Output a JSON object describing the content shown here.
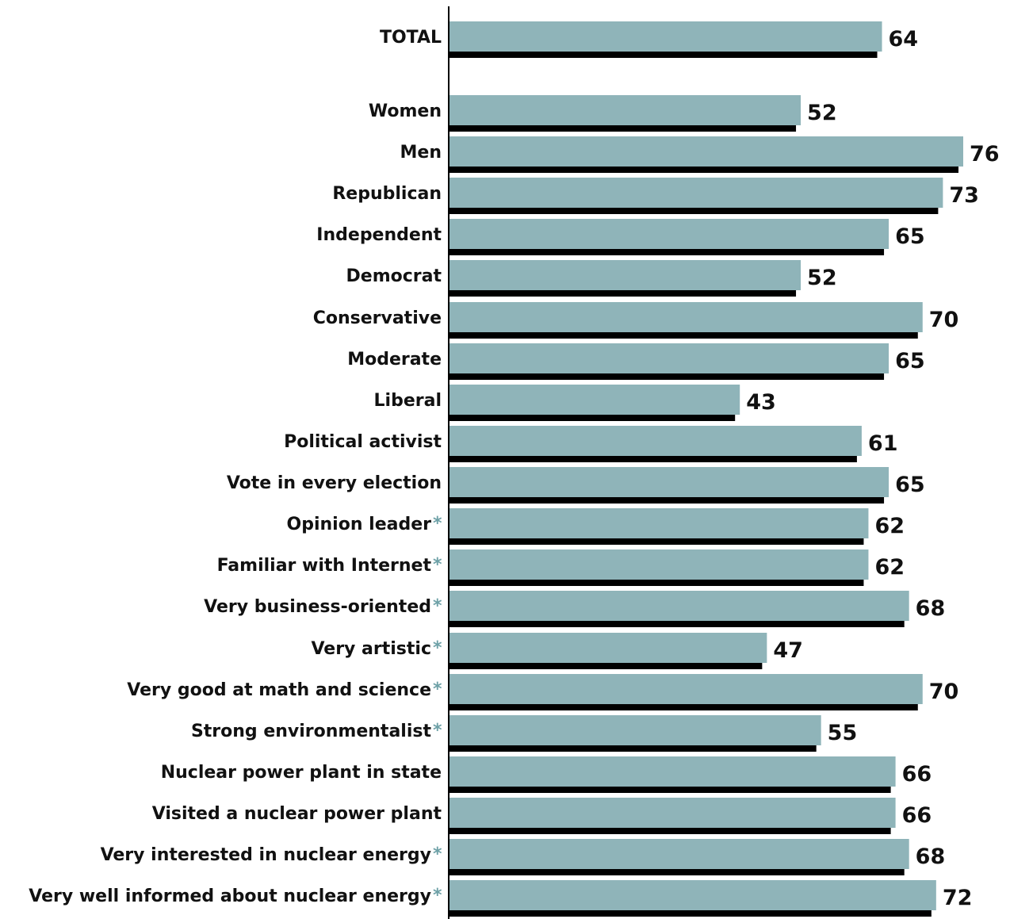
{
  "chart_data": {
    "type": "bar",
    "orientation": "horizontal",
    "xlim": [
      0,
      76
    ],
    "grid": false,
    "legend": "none",
    "colors": {
      "bar": "#8fb4b9",
      "shadow": "#000000",
      "asterisk": "#6ea1a7",
      "axis": "#000000"
    },
    "categories": [
      {
        "label": "TOTAL",
        "value": 64,
        "value_label": "64",
        "asterisk": false
      },
      {
        "label": "Women",
        "value": 52,
        "value_label": "52",
        "asterisk": false
      },
      {
        "label": "Men",
        "value": 76,
        "value_label": "76",
        "asterisk": false
      },
      {
        "label": "Republican",
        "value": 73,
        "value_label": "73",
        "asterisk": false
      },
      {
        "label": "Independent",
        "value": 65,
        "value_label": "65",
        "asterisk": false
      },
      {
        "label": "Democrat",
        "value": 52,
        "value_label": "52",
        "asterisk": false
      },
      {
        "label": "Conservative",
        "value": 70,
        "value_label": "70",
        "asterisk": false
      },
      {
        "label": "Moderate",
        "value": 65,
        "value_label": "65",
        "asterisk": false
      },
      {
        "label": "Liberal",
        "value": 43,
        "value_label": "43",
        "asterisk": false
      },
      {
        "label": "Political activist",
        "value": 61,
        "value_label": "61",
        "asterisk": false
      },
      {
        "label": "Vote in every election",
        "value": 65,
        "value_label": "65",
        "asterisk": false
      },
      {
        "label": "Opinion leader",
        "value": 62,
        "value_label": "62",
        "asterisk": true
      },
      {
        "label": "Familiar with Internet",
        "value": 62,
        "value_label": "62",
        "asterisk": true
      },
      {
        "label": "Very business-oriented",
        "value": 68,
        "value_label": "68",
        "asterisk": true
      },
      {
        "label": "Very artistic",
        "value": 47,
        "value_label": "47",
        "asterisk": true
      },
      {
        "label": "Very good at math and science",
        "value": 70,
        "value_label": "70",
        "asterisk": true
      },
      {
        "label": "Strong environmentalist",
        "value": 55,
        "value_label": "55",
        "asterisk": true
      },
      {
        "label": "Nuclear power plant in state",
        "value": 66,
        "value_label": "66",
        "asterisk": false
      },
      {
        "label": "Visited a nuclear power plant",
        "value": 66,
        "value_label": "66",
        "asterisk": false
      },
      {
        "label": "Very interested in nuclear energy",
        "value": 68,
        "value_label": "68",
        "asterisk": true
      },
      {
        "label": "Very well informed about nuclear energy",
        "value": 72,
        "value_label": "72",
        "asterisk": true
      }
    ],
    "asterisk_mark": "*"
  }
}
